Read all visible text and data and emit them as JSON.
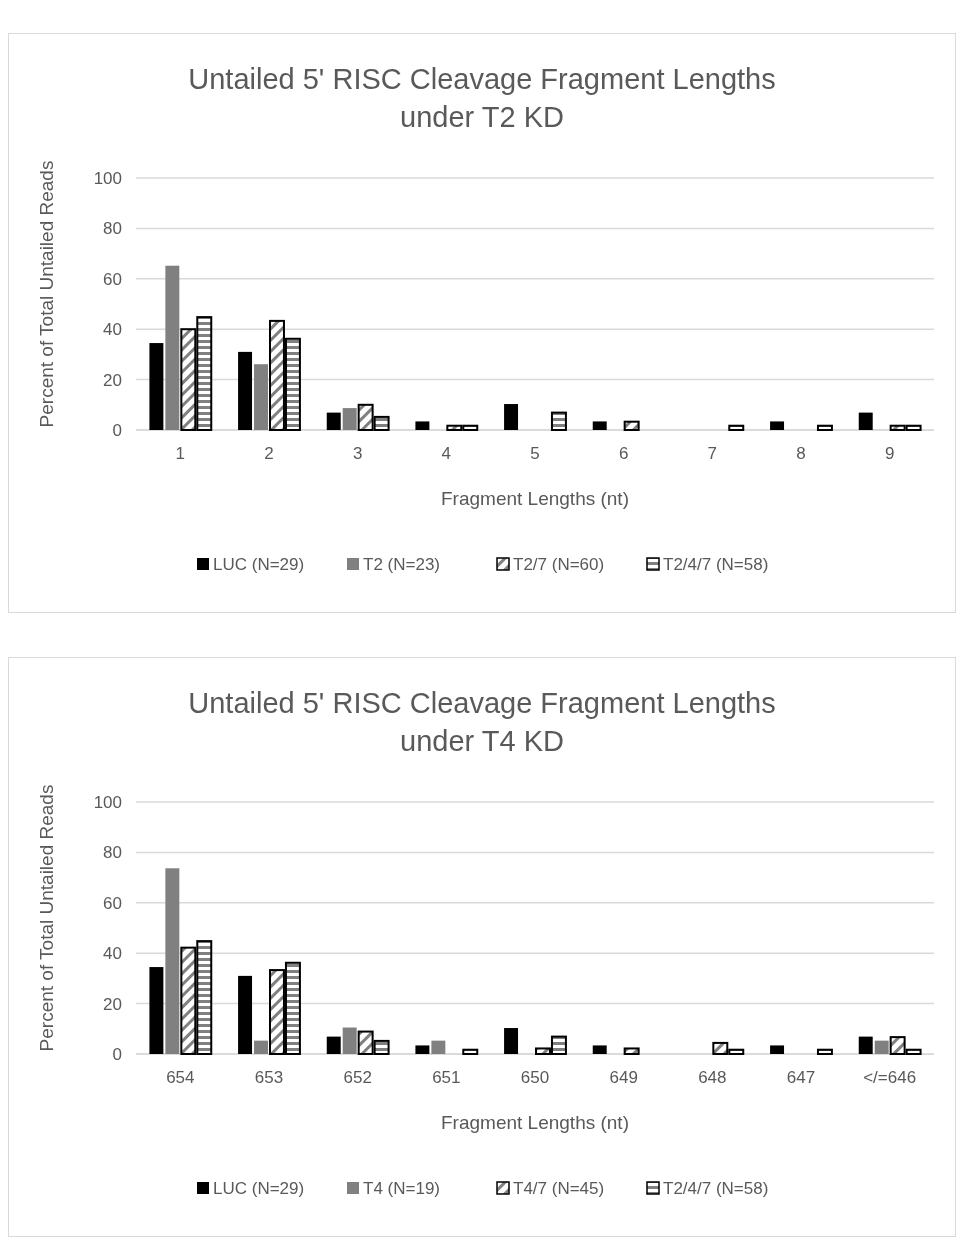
{
  "chart_data": [
    {
      "type": "bar",
      "title": "Untailed 5' RISC Cleavage Fragment Lengths under T2 KD",
      "xlabel": "Fragment Lengths (nt)",
      "ylabel": "Percent of Total Untailed Reads",
      "categories": [
        "1",
        "2",
        "3",
        "4",
        "5",
        "6",
        "7",
        "8",
        "9"
      ],
      "ylim": [
        0,
        100
      ],
      "yticks": [
        0,
        20,
        40,
        60,
        80,
        100
      ],
      "grid": "y",
      "legend": "bottom",
      "series": [
        {
          "name": "LUC (N=29)",
          "color": "#000000",
          "values": [
            34.5,
            31.0,
            6.9,
            3.4,
            10.3,
            3.4,
            0,
            3.4,
            6.9
          ]
        },
        {
          "name": "T2 (N=23)",
          "color": "#808080",
          "values": [
            65.2,
            26.1,
            8.7,
            0,
            0,
            0,
            0,
            0,
            0
          ]
        },
        {
          "name": "T2/7 (N=60)",
          "color": "#000000",
          "values": [
            40.0,
            43.3,
            10.0,
            1.7,
            0,
            3.3,
            0,
            0,
            1.7
          ]
        },
        {
          "name": "T2/4/7 (N=58)",
          "color": "#000000",
          "values": [
            44.8,
            36.2,
            5.2,
            1.7,
            6.9,
            0,
            1.7,
            1.7,
            1.7
          ]
        }
      ]
    },
    {
      "type": "bar",
      "title": "Untailed 5' RISC Cleavage Fragment Lengths under T4 KD",
      "xlabel": "Fragment Lengths (nt)",
      "ylabel": "Percent of Total Untailed Reads",
      "categories": [
        "654",
        "653",
        "652",
        "651",
        "650",
        "649",
        "648",
        "647",
        "</=646"
      ],
      "ylim": [
        0,
        100
      ],
      "yticks": [
        0,
        20,
        40,
        60,
        80,
        100
      ],
      "grid": "y",
      "legend": "bottom",
      "series": [
        {
          "name": "LUC (N=29)",
          "color": "#000000",
          "values": [
            34.5,
            31.0,
            6.9,
            3.4,
            10.3,
            3.4,
            0,
            3.4,
            6.9
          ]
        },
        {
          "name": "T4 (N=19)",
          "color": "#808080",
          "values": [
            73.7,
            5.3,
            10.5,
            5.3,
            0,
            0,
            0,
            0,
            5.3
          ]
        },
        {
          "name": "T4/7 (N=45)",
          "color": "#000000",
          "values": [
            42.2,
            33.3,
            8.9,
            0,
            2.2,
            2.2,
            4.4,
            0,
            6.7
          ]
        },
        {
          "name": "T2/4/7 (N=58)",
          "color": "#000000",
          "values": [
            44.8,
            36.2,
            5.2,
            1.7,
            6.9,
            0,
            1.7,
            1.7,
            1.7
          ]
        }
      ]
    }
  ]
}
